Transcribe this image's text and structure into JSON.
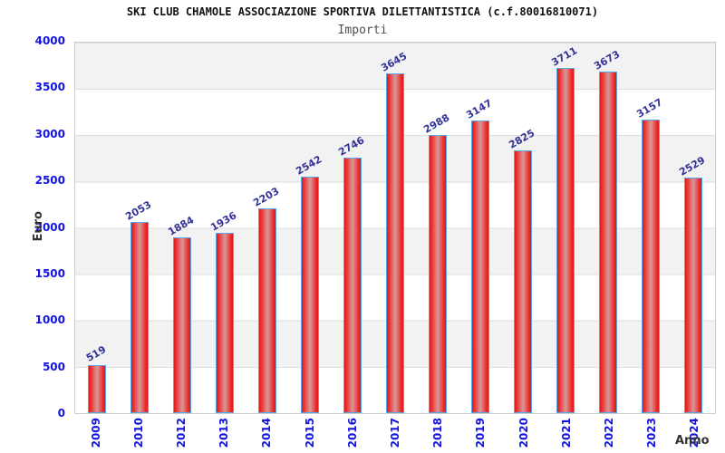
{
  "page": {
    "title": "SKI CLUB CHAMOLE ASSOCIAZIONE SPORTIVA DILETTANTISTICA (c.f.80016810071)",
    "subtitle": "Importi"
  },
  "chart_data": {
    "type": "bar",
    "title": "SKI CLUB CHAMOLE ASSOCIAZIONE SPORTIVA DILETTANTISTICA (c.f.80016810071)",
    "subtitle": "Importi",
    "xlabel": "Anno",
    "ylabel": "Euro",
    "categories": [
      "2009",
      "2010",
      "2012",
      "2013",
      "2014",
      "2015",
      "2016",
      "2017",
      "2018",
      "2019",
      "2020",
      "2021",
      "2022",
      "2023",
      "2024"
    ],
    "values": [
      519,
      2053,
      1884,
      1936,
      2203,
      2542,
      2746,
      3645,
      2988,
      3147,
      2825,
      3711,
      3673,
      3157,
      2529
    ],
    "ylim": [
      0,
      4000
    ],
    "yticks": [
      0,
      500,
      1000,
      1500,
      2000,
      2500,
      3000,
      3500,
      4000
    ],
    "grid": "alternating horizontal gray/white bands every 500, thin gray gridlines",
    "legend": "none",
    "colors": {
      "bar_fill": "#ee2323",
      "bar_highlight": "#d99292",
      "bar_border": "#55a9e8",
      "axis_tick_label": "#1414e0",
      "value_label": "#333399",
      "band_light": "#f2f2f2",
      "band_white": "#ffffff",
      "plot_border": "#cccccc"
    }
  }
}
